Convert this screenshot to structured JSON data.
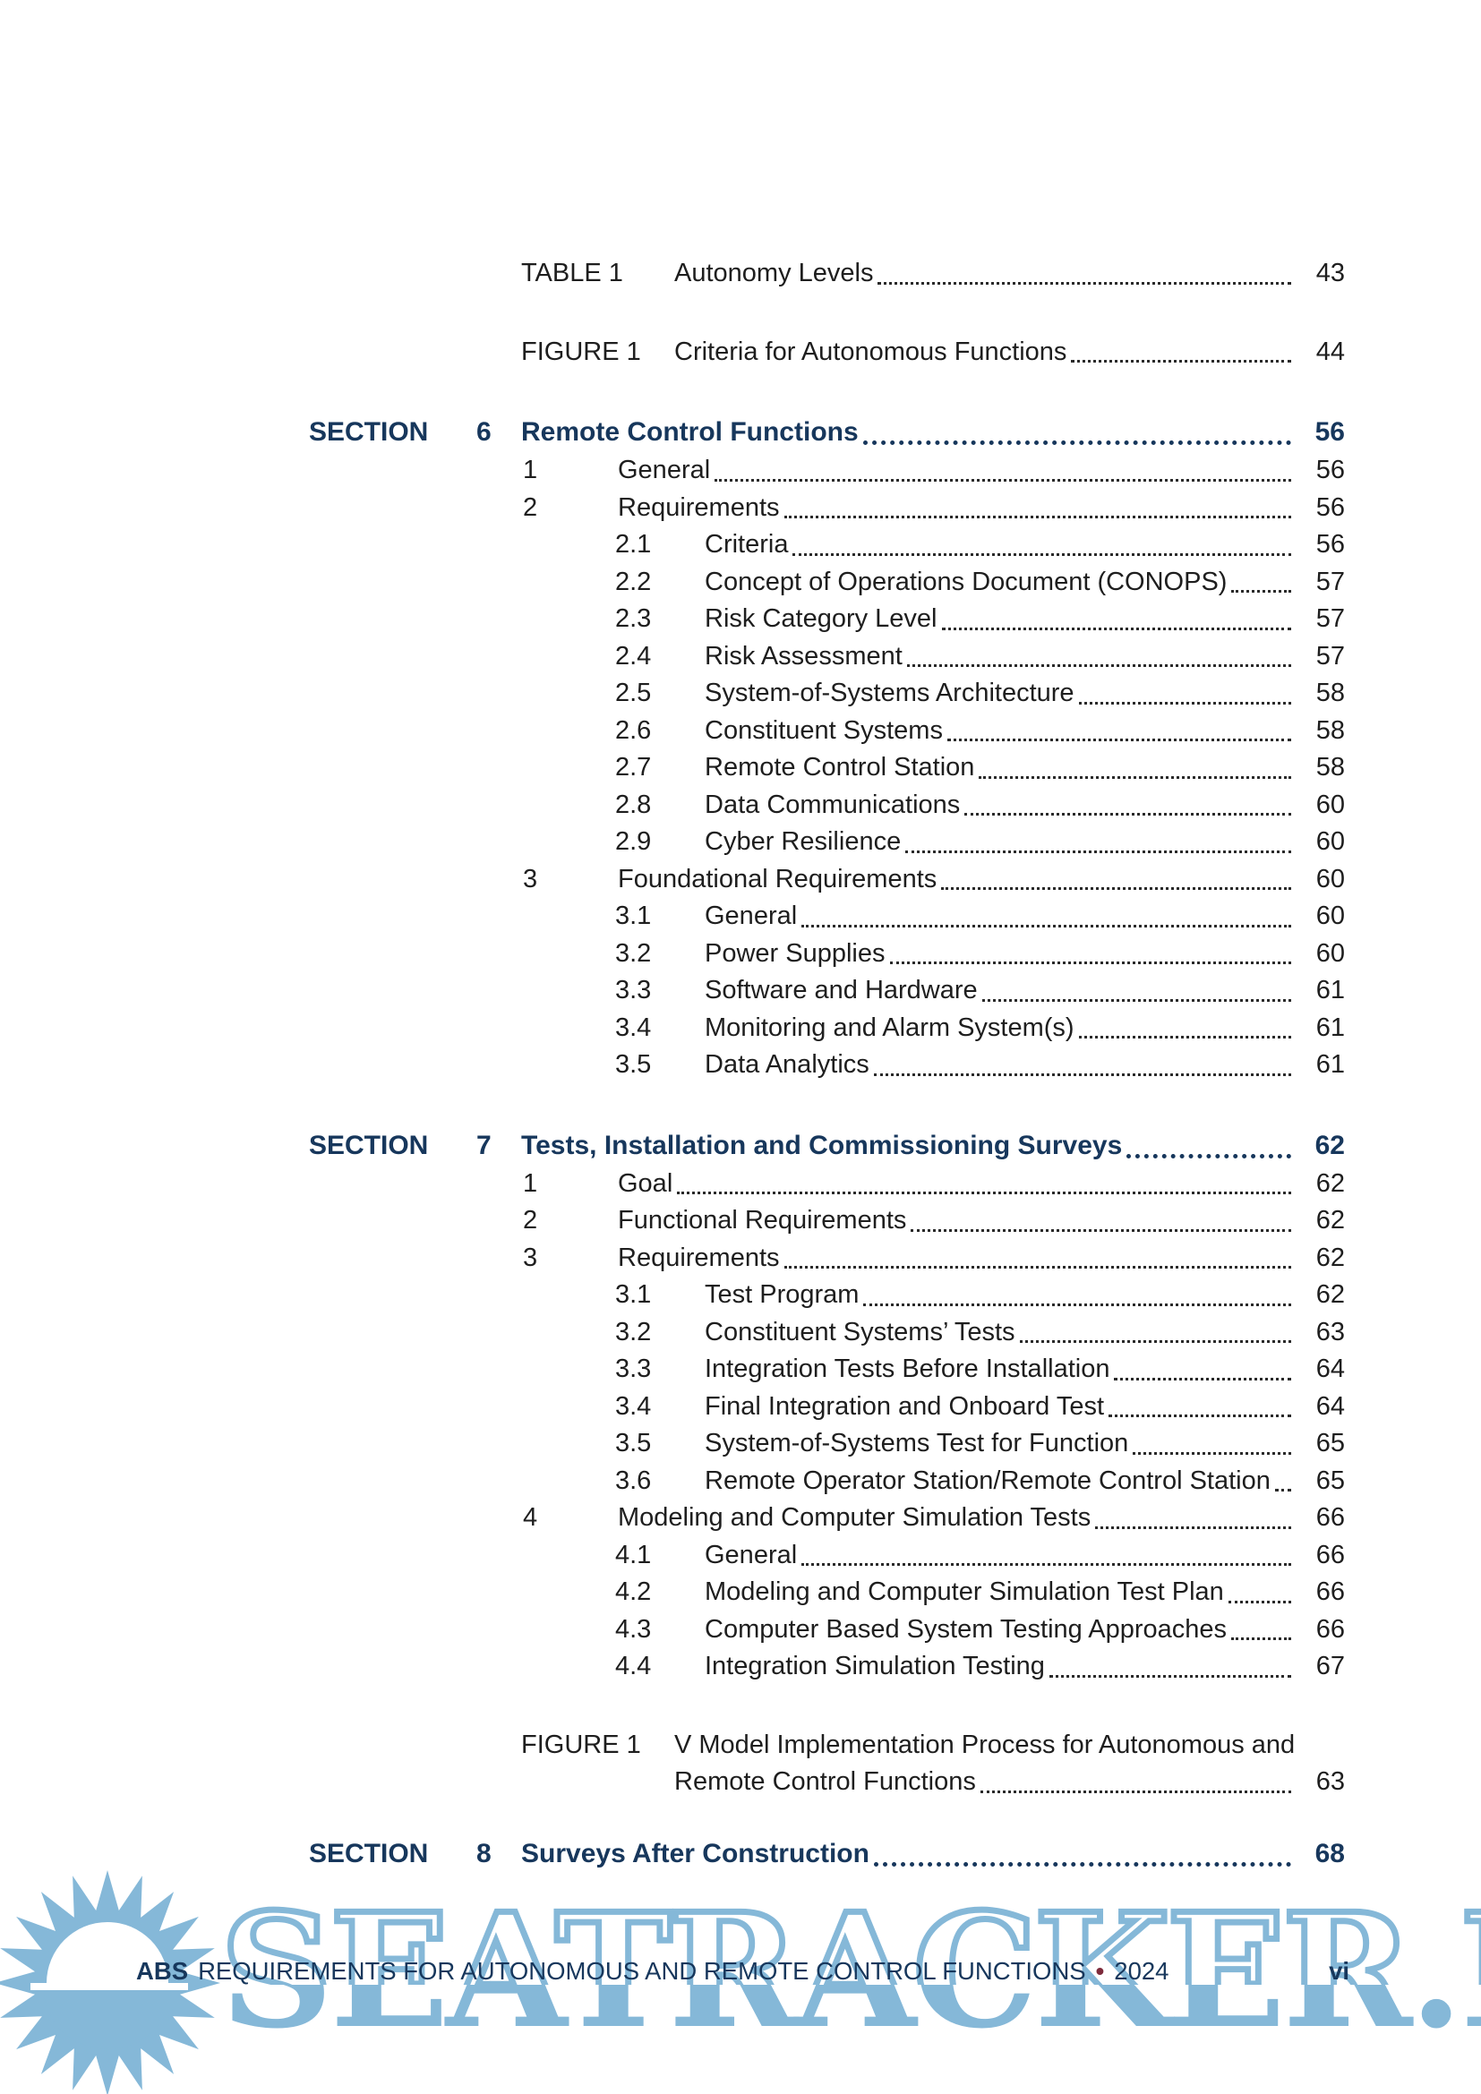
{
  "watermark": {
    "text": "SEATRACKER.RU"
  },
  "footer": {
    "brand": "ABS",
    "text": "REQUIREMENTS FOR AUTONOMOUS AND REMOTE CONTROL FUNCTIONS",
    "separator": "•",
    "year": "2024",
    "page_number": "vi"
  },
  "colors": {
    "heading_navy": "#17375c",
    "body_text": "#1e1e1e",
    "watermark_blue": "#85b8d8",
    "footer_bullet_red": "#7d2b3c",
    "page_background": "#ffffff"
  },
  "toc": {
    "entries": [
      {
        "kind": "caption",
        "label": "TABLE 1",
        "title": "Autonomy Levels",
        "page": "43",
        "gap": "start"
      },
      {
        "kind": "caption",
        "label": "FIGURE 1",
        "title": "Criteria for Autonomous Functions",
        "page": "44",
        "gap": "block"
      },
      {
        "kind": "section",
        "label": "SECTION",
        "num": "6",
        "title": "Remote Control Functions",
        "page": "56",
        "gap": "block"
      },
      {
        "kind": "l1",
        "num": "1",
        "title": "General",
        "page": "56"
      },
      {
        "kind": "l1",
        "num": "2",
        "title": "Requirements",
        "page": "56"
      },
      {
        "kind": "l2",
        "num": "2.1",
        "title": "Criteria",
        "page": "56"
      },
      {
        "kind": "l2",
        "num": "2.2",
        "title": "Concept of Operations Document (CONOPS)",
        "page": "57"
      },
      {
        "kind": "l2",
        "num": "2.3",
        "title": "Risk Category Level",
        "page": "57"
      },
      {
        "kind": "l2",
        "num": "2.4",
        "title": "Risk Assessment",
        "page": "57"
      },
      {
        "kind": "l2",
        "num": "2.5",
        "title": "System-of-Systems Architecture",
        "page": "58"
      },
      {
        "kind": "l2",
        "num": "2.6",
        "title": "Constituent Systems",
        "page": "58"
      },
      {
        "kind": "l2",
        "num": "2.7",
        "title": "Remote Control Station",
        "page": "58"
      },
      {
        "kind": "l2",
        "num": "2.8",
        "title": "Data Communications",
        "page": "60"
      },
      {
        "kind": "l2",
        "num": "2.9",
        "title": "Cyber Resilience",
        "page": "60"
      },
      {
        "kind": "l1",
        "num": "3",
        "title": "Foundational Requirements",
        "page": "60"
      },
      {
        "kind": "l2",
        "num": "3.1",
        "title": "General",
        "page": "60"
      },
      {
        "kind": "l2",
        "num": "3.2",
        "title": "Power Supplies",
        "page": "60"
      },
      {
        "kind": "l2",
        "num": "3.3",
        "title": "Software and Hardware",
        "page": "61"
      },
      {
        "kind": "l2",
        "num": "3.4",
        "title": "Monitoring and Alarm System(s)",
        "page": "61"
      },
      {
        "kind": "l2",
        "num": "3.5",
        "title": "Data Analytics",
        "page": "61"
      },
      {
        "kind": "section",
        "label": "SECTION",
        "num": "7",
        "title": "Tests, Installation and Commissioning Surveys",
        "page": "62",
        "gap": "block"
      },
      {
        "kind": "l1",
        "num": "1",
        "title": "Goal",
        "page": "62"
      },
      {
        "kind": "l1",
        "num": "2",
        "title": "Functional Requirements",
        "page": "62"
      },
      {
        "kind": "l1",
        "num": "3",
        "title": "Requirements",
        "page": "62"
      },
      {
        "kind": "l2",
        "num": "3.1",
        "title": "Test Program",
        "page": "62"
      },
      {
        "kind": "l2",
        "num": "3.2",
        "title": "Constituent Systems’ Tests",
        "page": "63"
      },
      {
        "kind": "l2",
        "num": "3.3",
        "title": "Integration Tests Before Installation",
        "page": "64"
      },
      {
        "kind": "l2",
        "num": "3.4",
        "title": "Final Integration and Onboard Test",
        "page": "64"
      },
      {
        "kind": "l2",
        "num": "3.5",
        "title": "System-of-Systems Test for Function",
        "page": "65"
      },
      {
        "kind": "l2",
        "num": "3.6",
        "title": "Remote Operator Station/Remote Control Station",
        "page": "65"
      },
      {
        "kind": "l1",
        "num": "4",
        "title": "Modeling and Computer Simulation Tests",
        "page": "66"
      },
      {
        "kind": "l2",
        "num": "4.1",
        "title": "General",
        "page": "66"
      },
      {
        "kind": "l2",
        "num": "4.2",
        "title": "Modeling and Computer Simulation Test Plan",
        "page": "66"
      },
      {
        "kind": "l2",
        "num": "4.3",
        "title": "Computer Based System Testing Approaches",
        "page": "66"
      },
      {
        "kind": "l2",
        "num": "4.4",
        "title": "Integration Simulation Testing",
        "page": "67"
      },
      {
        "kind": "caption2",
        "label": "FIGURE 1",
        "title_line1": "V Model Implementation Process for Autonomous and",
        "title_line2": "Remote Control Functions",
        "page": "63",
        "gap": "block"
      },
      {
        "kind": "section",
        "label": "SECTION",
        "num": "8",
        "title": "Surveys After Construction",
        "page": "68",
        "gap": "small"
      }
    ]
  }
}
